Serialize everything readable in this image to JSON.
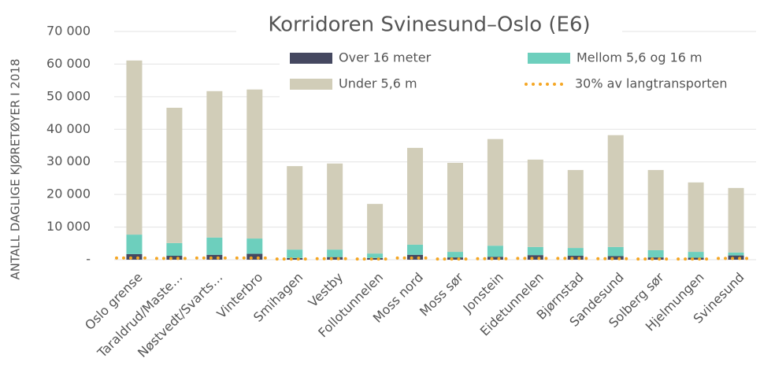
{
  "chart_data": {
    "type": "stacked-bar",
    "title": "Korridoren Svinesund–Oslo (E6)",
    "y_label": "ANTALL DAGLIGE KJØRETØYER I 2018",
    "categories": [
      "Oslo grense",
      "Taraldrud/Maste…",
      "Nøstvedt/Svarts…",
      "Vinterbro",
      "Smihagen",
      "Vestby",
      "Follotunnelen",
      "Moss nord",
      "Moss sør",
      "Jonstein",
      "Eidetunnelen",
      "Bjørnstad",
      "Sandesund",
      "Solberg sør",
      "Hjelmungen",
      "Svinesund"
    ],
    "series": [
      {
        "name": "Over 16 meter",
        "color": "#454860",
        "values": [
          1700,
          1200,
          1500,
          1800,
          500,
          800,
          500,
          1500,
          700,
          900,
          1400,
          1200,
          1100,
          700,
          600,
          1300
        ]
      },
      {
        "name": "Mellom 5,6 og 16 m",
        "color": "#6dcfbd",
        "values": [
          6000,
          3900,
          5300,
          4700,
          2600,
          2300,
          1400,
          3100,
          1700,
          3400,
          2500,
          2400,
          2800,
          2200,
          1800,
          900
        ]
      },
      {
        "name": "Under 5,6 m",
        "color": "#d1cdb8",
        "values": [
          53400,
          41500,
          44900,
          45700,
          25600,
          26400,
          15200,
          29700,
          27300,
          32700,
          26800,
          23900,
          34300,
          24600,
          21300,
          19800
        ]
      },
      {
        "name": "30% av langtransporten",
        "color": "#f5a623",
        "line": true,
        "values": [
          500,
          400,
          500,
          500,
          200,
          300,
          200,
          500,
          200,
          300,
          400,
          400,
          300,
          200,
          200,
          400
        ]
      }
    ],
    "ylim": [
      0,
      70000
    ],
    "yticks": [
      {
        "value": 0,
        "label": "-"
      },
      {
        "value": 10000,
        "label": "10 000"
      },
      {
        "value": 20000,
        "label": "20 000"
      },
      {
        "value": 30000,
        "label": "30 000"
      },
      {
        "value": 40000,
        "label": "40 000"
      },
      {
        "value": 50000,
        "label": "50 000"
      },
      {
        "value": 60000,
        "label": "60 000"
      },
      {
        "value": 70000,
        "label": "70 000"
      }
    ],
    "grid": true
  }
}
